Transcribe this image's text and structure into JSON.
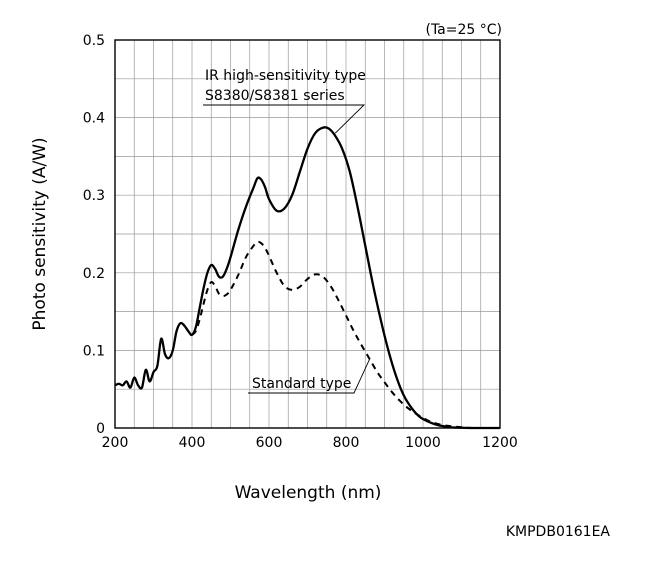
{
  "chart_data": {
    "type": "line",
    "condition": "(Ta=25 °C)",
    "xlabel": "Wavelength (nm)",
    "ylabel": "Photo sensitivity (A/W)",
    "xlim": [
      200,
      1200
    ],
    "ylim": [
      0,
      0.5
    ],
    "x_ticks": [
      "200",
      "400",
      "600",
      "800",
      "1000",
      "1200"
    ],
    "y_ticks": [
      "0",
      "0.1",
      "0.2",
      "0.3",
      "0.4",
      "0.5"
    ],
    "x_grid_step": 50,
    "y_grid_step": 0.05,
    "grid": true,
    "code": "KMPDB0161EA",
    "series": [
      {
        "name": "IR high-sensitivity type S8380/S8381 series",
        "label_lines": [
          "IR high-sensitivity type",
          "S8380/S8381 series"
        ],
        "style": "solid",
        "x": [
          200,
          210,
          220,
          230,
          240,
          250,
          260,
          270,
          280,
          290,
          300,
          310,
          320,
          330,
          340,
          350,
          360,
          370,
          380,
          390,
          400,
          410,
          420,
          430,
          440,
          450,
          460,
          470,
          480,
          490,
          500,
          520,
          540,
          560,
          570,
          580,
          590,
          600,
          620,
          640,
          660,
          680,
          700,
          720,
          740,
          755,
          770,
          790,
          810,
          830,
          850,
          870,
          890,
          910,
          930,
          950,
          970,
          990,
          1010,
          1030,
          1050,
          1070,
          1090,
          1110,
          1130,
          1150,
          1170,
          1200
        ],
        "values": [
          0.055,
          0.057,
          0.055,
          0.06,
          0.052,
          0.065,
          0.055,
          0.052,
          0.075,
          0.06,
          0.072,
          0.08,
          0.115,
          0.095,
          0.09,
          0.1,
          0.125,
          0.135,
          0.132,
          0.125,
          0.12,
          0.13,
          0.155,
          0.18,
          0.2,
          0.21,
          0.205,
          0.195,
          0.195,
          0.205,
          0.22,
          0.255,
          0.285,
          0.31,
          0.322,
          0.32,
          0.31,
          0.295,
          0.28,
          0.283,
          0.3,
          0.33,
          0.36,
          0.38,
          0.387,
          0.386,
          0.378,
          0.36,
          0.33,
          0.285,
          0.235,
          0.185,
          0.14,
          0.1,
          0.067,
          0.042,
          0.026,
          0.015,
          0.009,
          0.005,
          0.0025,
          0.001,
          0.0005,
          0.0002,
          0,
          0,
          0,
          0
        ]
      },
      {
        "name": "Standard type",
        "label_lines": [
          "Standard type"
        ],
        "style": "dashed",
        "x": [
          400,
          410,
          420,
          430,
          440,
          450,
          460,
          470,
          480,
          490,
          500,
          520,
          540,
          560,
          570,
          580,
          590,
          600,
          620,
          640,
          660,
          680,
          700,
          720,
          740,
          760,
          780,
          800,
          820,
          840,
          860,
          880,
          900,
          920,
          940,
          960,
          980,
          1000,
          1020,
          1040,
          1060,
          1080,
          1100,
          1120
        ],
        "values": [
          0.12,
          0.125,
          0.14,
          0.16,
          0.178,
          0.188,
          0.183,
          0.173,
          0.17,
          0.172,
          0.178,
          0.197,
          0.22,
          0.235,
          0.24,
          0.238,
          0.232,
          0.222,
          0.2,
          0.183,
          0.178,
          0.182,
          0.192,
          0.198,
          0.195,
          0.183,
          0.165,
          0.145,
          0.125,
          0.107,
          0.09,
          0.073,
          0.059,
          0.046,
          0.035,
          0.026,
          0.019,
          0.013,
          0.008,
          0.005,
          0.003,
          0.002,
          0.001,
          0
        ]
      }
    ]
  }
}
